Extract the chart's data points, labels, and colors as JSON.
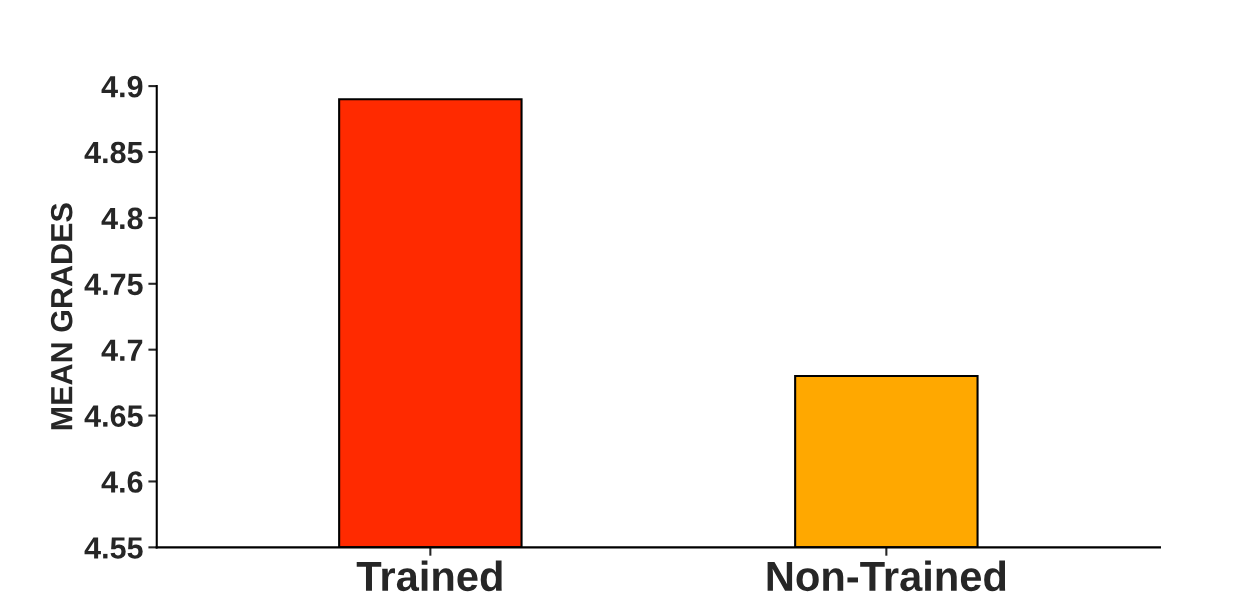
{
  "chart_data": {
    "type": "bar",
    "ylabel": "MEAN GRADES",
    "categories": [
      "Trained",
      "Non-Trained"
    ],
    "values": [
      4.89,
      4.68
    ],
    "colors": [
      "#ff2a00",
      "#ffa800"
    ],
    "ylim": [
      4.55,
      4.9
    ],
    "yticks": [
      4.55,
      4.6,
      4.65,
      4.7,
      4.75,
      4.8,
      4.85,
      4.9
    ],
    "grid": false
  }
}
